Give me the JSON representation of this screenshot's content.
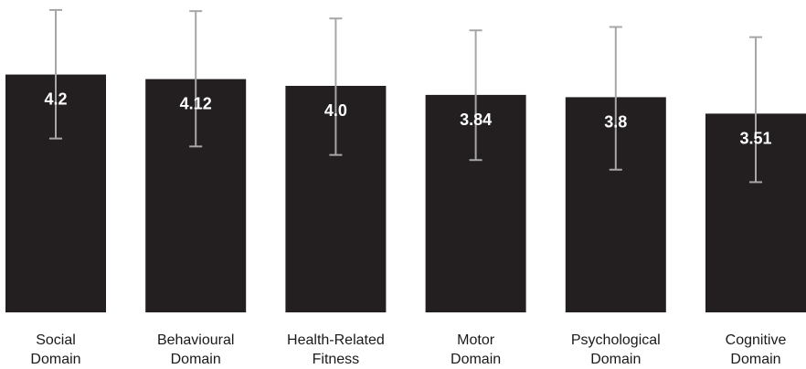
{
  "chart_data": {
    "type": "bar",
    "title": "",
    "xlabel": "",
    "ylabel": "",
    "categories": [
      [
        "Social",
        "Domain"
      ],
      [
        "Behavioural",
        "Domain"
      ],
      [
        "Health-Related",
        "Fitness"
      ],
      [
        "Motor",
        "Domain"
      ],
      [
        "Psychological",
        "Domain"
      ],
      [
        "Cognitive",
        "Domain"
      ]
    ],
    "values": [
      4.2,
      4.12,
      4.0,
      3.84,
      3.8,
      3.51
    ],
    "value_labels": [
      "4.2",
      "4.12",
      "4.0",
      "3.84",
      "3.8",
      "3.51"
    ],
    "error_low": [
      3.07,
      2.93,
      2.78,
      2.69,
      2.52,
      2.3
    ],
    "error_high": [
      5.34,
      5.32,
      5.19,
      4.98,
      5.04,
      4.86
    ],
    "ylim": [
      0,
      5.5
    ],
    "grid": false,
    "colors": {
      "bar": "#231f20",
      "error_bar": "#a6a6a6",
      "value_text": "#ffffff"
    }
  }
}
